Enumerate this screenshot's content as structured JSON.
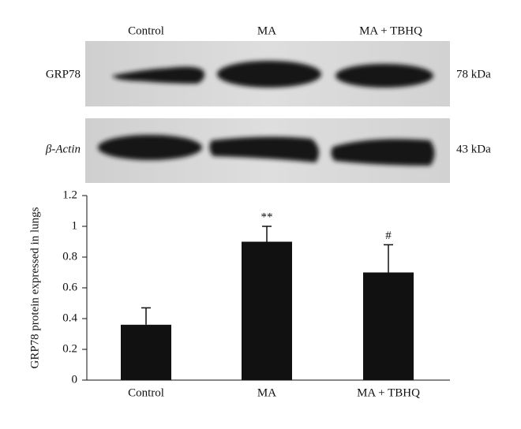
{
  "blot": {
    "lanes": [
      "Control",
      "MA",
      "MA + TBHQ"
    ],
    "rows": [
      {
        "name": "GRP78",
        "size": "78 kDa"
      },
      {
        "name": "β-Actin",
        "size": "43 kDa"
      }
    ]
  },
  "chart_data": {
    "type": "bar",
    "y_label": "GRP78 protein expressed in lungs",
    "categories": [
      "Control",
      "MA",
      "MA + TBHQ"
    ],
    "values": [
      0.36,
      0.9,
      0.7
    ],
    "errors": [
      0.11,
      0.1,
      0.18
    ],
    "annotations": [
      null,
      "**",
      "#"
    ],
    "color": "#111111",
    "ylim": [
      0,
      1.2
    ],
    "yticks": [
      0,
      0.2,
      0.4,
      0.6,
      0.8,
      1,
      1.2
    ],
    "grid": false
  }
}
